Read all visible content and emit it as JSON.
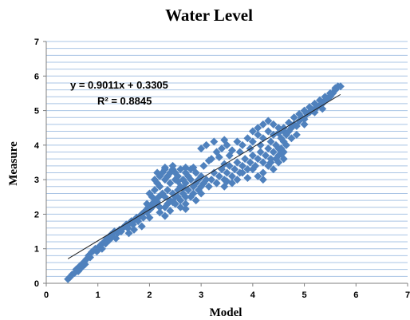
{
  "chart_data": {
    "type": "scatter",
    "title": "Water Level",
    "xlabel": "Model",
    "ylabel": "Measure",
    "xlim": [
      0,
      7
    ],
    "ylim": [
      0,
      7
    ],
    "xticks": [
      0,
      1,
      2,
      3,
      4,
      5,
      6,
      7
    ],
    "yticks": [
      0,
      1,
      2,
      3,
      4,
      5,
      6,
      7
    ],
    "minor_grid_step": 0.2,
    "grid": true,
    "legend": "none",
    "marker": "diamond",
    "marker_color": "#4f81bd",
    "trendline": {
      "type": "linear",
      "slope": 0.9011,
      "intercept": 0.3305,
      "x_range": [
        0.42,
        5.7
      ],
      "equation": "y = 0.9011x + 0.3305",
      "r_squared": "R² = 0.8845"
    },
    "series": [
      {
        "values": [
          [
            0.42,
            0.12
          ],
          [
            0.46,
            0.18
          ],
          [
            0.5,
            0.25
          ],
          [
            0.55,
            0.3
          ],
          [
            0.58,
            0.4
          ],
          [
            0.62,
            0.35
          ],
          [
            0.65,
            0.5
          ],
          [
            0.68,
            0.45
          ],
          [
            0.72,
            0.6
          ],
          [
            0.75,
            0.55
          ],
          [
            0.78,
            0.7
          ],
          [
            0.82,
            0.8
          ],
          [
            0.85,
            0.75
          ],
          [
            0.88,
            0.9
          ],
          [
            0.92,
            0.95
          ],
          [
            0.95,
            1.0
          ],
          [
            0.98,
            0.92
          ],
          [
            1.02,
            1.05
          ],
          [
            1.05,
            1.1
          ],
          [
            1.08,
            1.0
          ],
          [
            1.12,
            1.2
          ],
          [
            1.15,
            1.15
          ],
          [
            1.18,
            1.3
          ],
          [
            1.22,
            1.25
          ],
          [
            1.25,
            1.4
          ],
          [
            1.28,
            1.35
          ],
          [
            1.32,
            1.5
          ],
          [
            1.35,
            1.3
          ],
          [
            1.38,
            1.45
          ],
          [
            1.42,
            1.55
          ],
          [
            1.45,
            1.5
          ],
          [
            1.48,
            1.6
          ],
          [
            1.52,
            1.65
          ],
          [
            1.55,
            1.7
          ],
          [
            1.58,
            1.6
          ],
          [
            1.62,
            1.75
          ],
          [
            1.65,
            1.8
          ],
          [
            1.68,
            1.7
          ],
          [
            1.72,
            1.85
          ],
          [
            1.75,
            1.9
          ],
          [
            1.78,
            1.8
          ],
          [
            1.82,
            1.95
          ],
          [
            1.85,
            2.0
          ],
          [
            1.88,
            1.9
          ],
          [
            1.92,
            2.1
          ],
          [
            1.95,
            2.05
          ],
          [
            1.98,
            2.2
          ],
          [
            2.02,
            2.15
          ],
          [
            2.05,
            2.3
          ],
          [
            2.08,
            2.25
          ],
          [
            2.12,
            2.4
          ],
          [
            2.15,
            2.35
          ],
          [
            2.18,
            2.5
          ],
          [
            1.7,
            1.55
          ],
          [
            1.6,
            1.45
          ],
          [
            1.85,
            1.65
          ],
          [
            2.0,
            1.9
          ],
          [
            1.95,
            2.3
          ],
          [
            2.05,
            2.5
          ],
          [
            2.1,
            2.7
          ],
          [
            2.0,
            2.6
          ],
          [
            2.15,
            2.9
          ],
          [
            2.1,
            3.0
          ],
          [
            2.2,
            2.8
          ],
          [
            2.2,
            3.1
          ],
          [
            2.25,
            3.2
          ],
          [
            2.3,
            3.0
          ],
          [
            2.3,
            3.3
          ],
          [
            2.35,
            3.1
          ],
          [
            2.4,
            3.2
          ],
          [
            2.4,
            2.9
          ],
          [
            2.45,
            3.3
          ],
          [
            2.5,
            3.0
          ],
          [
            2.5,
            3.2
          ],
          [
            2.55,
            3.1
          ],
          [
            2.6,
            3.3
          ],
          [
            2.6,
            2.8
          ],
          [
            2.65,
            3.0
          ],
          [
            2.7,
            3.2
          ],
          [
            2.7,
            2.9
          ],
          [
            2.75,
            3.1
          ],
          [
            2.8,
            3.0
          ],
          [
            2.8,
            3.3
          ],
          [
            2.85,
            2.8
          ],
          [
            2.9,
            3.2
          ],
          [
            2.9,
            2.9
          ],
          [
            2.95,
            3.0
          ],
          [
            3.0,
            3.1
          ],
          [
            3.0,
            2.8
          ],
          [
            2.25,
            2.6
          ],
          [
            2.3,
            2.5
          ],
          [
            2.35,
            2.7
          ],
          [
            2.4,
            2.4
          ],
          [
            2.45,
            2.6
          ],
          [
            2.5,
            2.5
          ],
          [
            2.55,
            2.7
          ],
          [
            2.6,
            2.4
          ],
          [
            2.65,
            2.6
          ],
          [
            2.7,
            2.5
          ],
          [
            2.75,
            2.7
          ],
          [
            2.2,
            2.2
          ],
          [
            2.3,
            2.2
          ],
          [
            2.4,
            2.1
          ],
          [
            2.5,
            2.3
          ],
          [
            2.6,
            2.2
          ],
          [
            2.7,
            2.3
          ],
          [
            2.8,
            2.5
          ],
          [
            2.9,
            2.4
          ],
          [
            3.0,
            2.6
          ],
          [
            2.2,
            2.05
          ],
          [
            2.3,
            1.95
          ],
          [
            2.35,
            2.3
          ],
          [
            2.45,
            2.35
          ],
          [
            2.55,
            2.5
          ],
          [
            2.65,
            2.75
          ],
          [
            2.7,
            2.15
          ],
          [
            2.85,
            2.6
          ],
          [
            2.95,
            2.7
          ],
          [
            3.05,
            2.9
          ],
          [
            3.1,
            3.0
          ],
          [
            3.15,
            2.8
          ],
          [
            3.2,
            3.0
          ],
          [
            3.25,
            3.2
          ],
          [
            3.3,
            2.9
          ],
          [
            3.35,
            3.1
          ],
          [
            3.4,
            3.3
          ],
          [
            3.45,
            3.0
          ],
          [
            3.5,
            3.2
          ],
          [
            3.55,
            3.4
          ],
          [
            3.6,
            3.1
          ],
          [
            3.65,
            3.3
          ],
          [
            3.7,
            3.5
          ],
          [
            3.75,
            3.2
          ],
          [
            3.8,
            3.4
          ],
          [
            3.85,
            3.6
          ],
          [
            3.9,
            3.3
          ],
          [
            3.95,
            3.5
          ],
          [
            4.0,
            3.7
          ],
          [
            4.05,
            3.4
          ],
          [
            4.1,
            3.6
          ],
          [
            4.15,
            3.8
          ],
          [
            4.2,
            3.5
          ],
          [
            4.25,
            3.7
          ],
          [
            4.3,
            3.9
          ],
          [
            4.35,
            3.6
          ],
          [
            4.4,
            3.8
          ],
          [
            4.45,
            4.0
          ],
          [
            4.5,
            3.7
          ],
          [
            4.55,
            3.9
          ],
          [
            4.6,
            4.1
          ],
          [
            3.2,
            3.6
          ],
          [
            3.3,
            3.8
          ],
          [
            3.4,
            3.9
          ],
          [
            3.5,
            4.0
          ],
          [
            3.6,
            3.85
          ],
          [
            3.7,
            4.1
          ],
          [
            3.8,
            4.0
          ],
          [
            3.9,
            4.2
          ],
          [
            4.0,
            4.1
          ],
          [
            4.1,
            4.3
          ],
          [
            4.2,
            4.2
          ],
          [
            4.3,
            4.4
          ],
          [
            4.4,
            4.3
          ],
          [
            4.5,
            4.5
          ],
          [
            4.6,
            4.4
          ],
          [
            3.0,
            3.9
          ],
          [
            3.1,
            4.0
          ],
          [
            3.25,
            4.1
          ],
          [
            3.45,
            4.15
          ],
          [
            3.55,
            3.7
          ],
          [
            3.75,
            3.8
          ],
          [
            3.95,
            3.9
          ],
          [
            4.15,
            4.0
          ],
          [
            4.35,
            4.1
          ],
          [
            4.55,
            4.2
          ],
          [
            4.0,
            4.4
          ],
          [
            4.1,
            4.5
          ],
          [
            4.2,
            4.6
          ],
          [
            4.3,
            4.7
          ],
          [
            4.4,
            4.6
          ],
          [
            3.8,
            3.2
          ],
          [
            3.9,
            3.05
          ],
          [
            4.0,
            3.3
          ],
          [
            4.1,
            3.1
          ],
          [
            4.2,
            3.2
          ],
          [
            4.3,
            3.4
          ],
          [
            4.4,
            3.3
          ],
          [
            4.5,
            3.5
          ],
          [
            4.6,
            3.6
          ],
          [
            4.2,
            3.0
          ],
          [
            4.35,
            3.5
          ],
          [
            4.45,
            3.6
          ],
          [
            4.55,
            3.75
          ],
          [
            4.5,
            3.9
          ],
          [
            4.6,
            3.8
          ],
          [
            3.3,
            2.9
          ],
          [
            3.45,
            2.8
          ],
          [
            3.5,
            2.95
          ],
          [
            3.6,
            2.9
          ],
          [
            3.7,
            3.0
          ],
          [
            2.15,
            3.2
          ],
          [
            2.3,
            3.35
          ],
          [
            2.45,
            3.4
          ],
          [
            2.55,
            2.95
          ],
          [
            2.7,
            3.35
          ],
          [
            2.85,
            3.35
          ],
          [
            3.05,
            3.4
          ],
          [
            3.15,
            3.55
          ],
          [
            3.35,
            3.65
          ],
          [
            3.45,
            3.45
          ],
          [
            4.65,
            4.3
          ],
          [
            4.7,
            4.4
          ],
          [
            4.75,
            4.5
          ],
          [
            4.8,
            4.6
          ],
          [
            4.85,
            4.55
          ],
          [
            4.9,
            4.7
          ],
          [
            4.95,
            4.8
          ],
          [
            5.0,
            4.75
          ],
          [
            5.05,
            4.9
          ],
          [
            5.1,
            4.95
          ],
          [
            5.15,
            5.0
          ],
          [
            5.2,
            5.05
          ],
          [
            5.25,
            5.1
          ],
          [
            5.3,
            5.15
          ],
          [
            5.35,
            5.2
          ],
          [
            5.4,
            5.3
          ],
          [
            5.45,
            5.35
          ],
          [
            5.5,
            5.4
          ],
          [
            5.55,
            5.5
          ],
          [
            5.6,
            5.6
          ],
          [
            5.65,
            5.7
          ],
          [
            5.7,
            5.7
          ],
          [
            4.9,
            4.9
          ],
          [
            5.0,
            5.0
          ],
          [
            5.1,
            5.1
          ],
          [
            5.2,
            5.2
          ],
          [
            5.3,
            5.3
          ],
          [
            5.4,
            5.4
          ],
          [
            5.5,
            5.5
          ],
          [
            5.6,
            5.65
          ],
          [
            4.8,
            4.8
          ],
          [
            4.7,
            4.65
          ],
          [
            4.6,
            4.5
          ],
          [
            4.5,
            4.35
          ],
          [
            4.65,
            4.0
          ],
          [
            4.75,
            4.2
          ],
          [
            4.85,
            4.3
          ],
          [
            5.0,
            4.6
          ],
          [
            5.2,
            4.95
          ],
          [
            5.35,
            5.05
          ]
        ]
      }
    ]
  }
}
